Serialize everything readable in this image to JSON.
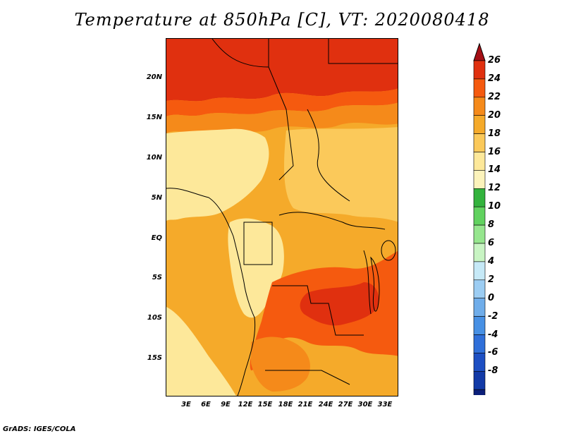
{
  "title": "Temperature at 850hPa [C], VT: 2020080418",
  "footer": "GrADS: IGES/COLA",
  "lat_labels": [
    "20N",
    "15N",
    "10N",
    "5N",
    "EQ",
    "5S",
    "10S",
    "15S"
  ],
  "lon_labels": [
    "3E",
    "6E",
    "9E",
    "12E",
    "15E",
    "18E",
    "21E",
    "24E",
    "27E",
    "30E",
    "33E"
  ],
  "colorbar": {
    "labels": [
      "26",
      "24",
      "22",
      "20",
      "18",
      "16",
      "14",
      "12",
      "10",
      "8",
      "6",
      "4",
      "2",
      "0",
      "-2",
      "-4",
      "-6",
      "-8"
    ],
    "colors": [
      "#a50f15",
      "#e0300f",
      "#f55a0f",
      "#f58a1a",
      "#f5aa2a",
      "#fbc95a",
      "#fde89a",
      "#fcf3bb",
      "#33b33d",
      "#61d25f",
      "#96e68e",
      "#c8f4c3",
      "#c6e9f7",
      "#9ccdf3",
      "#6fadea",
      "#4790e4",
      "#2f6fd9",
      "#1d4fc3",
      "#123aa7",
      "#0b1f7a",
      "#d9d9f5"
    ]
  },
  "map": {
    "extent": {
      "lon_min": 0,
      "lon_max": 35,
      "lat_min": -20,
      "lat_max": 25
    },
    "region": "Central Africa",
    "field": "temperature",
    "units": "C"
  }
}
